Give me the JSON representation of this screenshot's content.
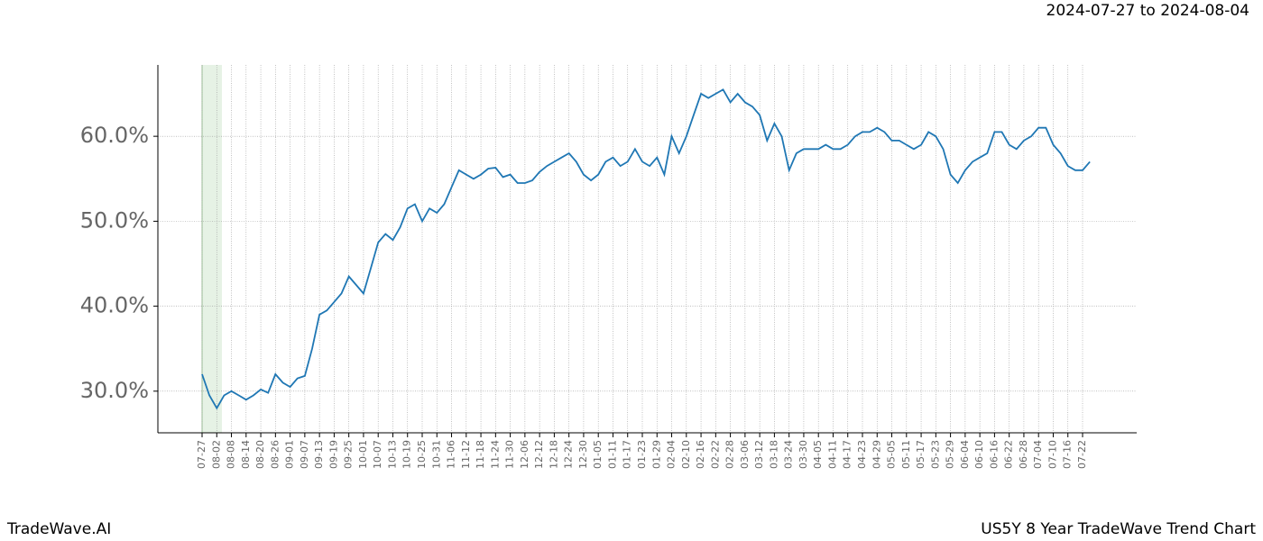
{
  "chart_data": {
    "type": "line",
    "header": "2024-07-27 to 2024-08-04",
    "footer_left": "TradeWave.AI",
    "footer_right": "US5Y 8 Year TradeWave Trend Chart",
    "categories": [
      "07-27",
      null,
      "08-02",
      null,
      "08-08",
      null,
      "08-14",
      null,
      "08-20",
      null,
      "08-26",
      null,
      "09-01",
      null,
      "09-07",
      null,
      "09-13",
      null,
      "09-19",
      null,
      "09-25",
      null,
      "10-01",
      null,
      "10-07",
      null,
      "10-13",
      null,
      "10-19",
      null,
      "10-25",
      null,
      "10-31",
      null,
      "11-06",
      null,
      "11-12",
      null,
      "11-18",
      null,
      "11-24",
      null,
      "11-30",
      null,
      "12-06",
      null,
      "12-12",
      null,
      "12-18",
      null,
      "12-24",
      null,
      "12-30",
      null,
      "01-05",
      null,
      "01-11",
      null,
      "01-17",
      null,
      "01-23",
      null,
      "01-29",
      null,
      "02-04",
      null,
      "02-10",
      null,
      "02-16",
      null,
      "02-22",
      null,
      "02-28",
      null,
      "03-06",
      null,
      "03-12",
      null,
      "03-18",
      null,
      "03-24",
      null,
      "03-30",
      null,
      "04-05",
      null,
      "04-11",
      null,
      "04-17",
      null,
      "04-23",
      null,
      "04-29",
      null,
      "05-05",
      null,
      "05-11",
      null,
      "05-17",
      null,
      "05-23",
      null,
      "05-29",
      null,
      "06-04",
      null,
      "06-10",
      null,
      "06-16",
      null,
      "06-22",
      null,
      "06-28",
      null,
      "07-04",
      null,
      "07-10",
      null,
      "07-16",
      null,
      "07-22",
      null
    ],
    "series": [
      {
        "color": "#1f77b4",
        "values": [
          32.0,
          29.5,
          28.0,
          29.5,
          30.0,
          29.5,
          29.0,
          29.5,
          30.2,
          29.8,
          32.0,
          31.0,
          30.5,
          31.5,
          31.8,
          35.0,
          39.0,
          39.5,
          40.5,
          41.5,
          43.5,
          42.5,
          41.5,
          44.5,
          47.5,
          48.5,
          47.8,
          49.3,
          51.5,
          52.0,
          50.0,
          51.5,
          51.0,
          52.0,
          54.0,
          56.0,
          55.5,
          55.0,
          55.5,
          56.2,
          56.3,
          55.2,
          55.5,
          54.5,
          54.5,
          54.8,
          55.8,
          56.5,
          57.0,
          57.5,
          58.0,
          57.0,
          55.5,
          54.8,
          55.5,
          57.0,
          57.5,
          56.5,
          57.0,
          58.5,
          57.0,
          56.5,
          57.5,
          55.5,
          60.0,
          58.0,
          60.0,
          62.5,
          65.0,
          64.5,
          65.0,
          65.5,
          64.0,
          65.0,
          64.0,
          63.5,
          62.5,
          59.5,
          61.5,
          60.0,
          56.0,
          58.0,
          58.5,
          58.5,
          58.5,
          59.0,
          58.5,
          58.5,
          59.0,
          60.0,
          60.5,
          60.5,
          61.0,
          60.5,
          59.5,
          59.5,
          59.0,
          58.5,
          59.0,
          60.5,
          60.0,
          58.5,
          55.5,
          54.5,
          56.0,
          57.0,
          57.5,
          58.0,
          60.5,
          60.5,
          59.0,
          58.5,
          59.5,
          60.0,
          61.0,
          61.0,
          59.0,
          58.0,
          56.5,
          56.0,
          56.0,
          57.0
        ]
      }
    ],
    "ylim": [
      25.1,
      68.4
    ],
    "yticks": [
      {
        "value": 30,
        "label": "30.0%"
      },
      {
        "value": 40,
        "label": "40.0%"
      },
      {
        "value": 50,
        "label": "50.0%"
      },
      {
        "value": 60,
        "label": "60.0%"
      }
    ],
    "grid": true
  }
}
